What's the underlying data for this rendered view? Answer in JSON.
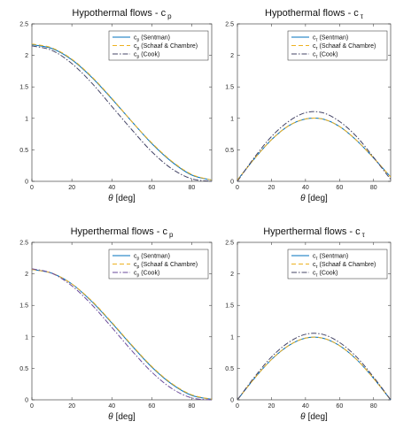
{
  "chart_data": [
    {
      "type": "line",
      "title": "Hypothermal flows - c",
      "title_sub": "p",
      "xlabel": "[deg]",
      "xlabel_symbol": "θ",
      "xlim": [
        0,
        90
      ],
      "ylim": [
        0,
        2.5
      ],
      "xticks": [
        "0",
        "20",
        "40",
        "60",
        "80"
      ],
      "yticks": [
        "0",
        "0.5",
        "1",
        "1.5",
        "2",
        "2.5"
      ],
      "legend_position": "top-right",
      "grid": false,
      "x": [
        0,
        10,
        20,
        30,
        40,
        50,
        60,
        70,
        80,
        90
      ],
      "series": [
        {
          "name": "c",
          "sub": "p",
          "name_suffix": "(Sentman)",
          "color": "#0072bd",
          "dash": "solid",
          "values": [
            2.17,
            2.11,
            1.93,
            1.65,
            1.31,
            0.95,
            0.6,
            0.31,
            0.1,
            0.02
          ]
        },
        {
          "name": "c",
          "sub": "p",
          "name_suffix": "(Schaaf & Chambre)",
          "color": "#edb120",
          "dash": "dashed",
          "values": [
            2.18,
            2.12,
            1.94,
            1.66,
            1.32,
            0.95,
            0.61,
            0.32,
            0.11,
            0.02
          ]
        },
        {
          "name": "c",
          "sub": "p",
          "name_suffix": "(Cook)",
          "color": "#444466",
          "dash": "dashdot",
          "values": [
            2.15,
            2.08,
            1.87,
            1.56,
            1.19,
            0.82,
            0.47,
            0.2,
            0.04,
            0.0
          ]
        }
      ]
    },
    {
      "type": "line",
      "title": "Hypothermal flows - c",
      "title_sub": "τ",
      "xlabel": "[deg]",
      "xlabel_symbol": "θ",
      "xlim": [
        0,
        90
      ],
      "ylim": [
        0,
        2.5
      ],
      "xticks": [
        "0",
        "20",
        "40",
        "60",
        "80"
      ],
      "yticks": [
        "0",
        "0.5",
        "1",
        "1.5",
        "2",
        "2.5"
      ],
      "legend_position": "top-right",
      "grid": false,
      "x": [
        0,
        10,
        20,
        30,
        40,
        50,
        60,
        70,
        80,
        90
      ],
      "series": [
        {
          "name": "c",
          "sub": "τ",
          "name_suffix": "(Sentman)",
          "color": "#0072bd",
          "dash": "solid",
          "values": [
            0.02,
            0.36,
            0.66,
            0.88,
            0.99,
            0.99,
            0.87,
            0.65,
            0.37,
            0.07
          ]
        },
        {
          "name": "c",
          "sub": "τ",
          "name_suffix": "(Schaaf & Chambre)",
          "color": "#edb120",
          "dash": "dashed",
          "values": [
            0.02,
            0.36,
            0.66,
            0.88,
            0.99,
            0.99,
            0.87,
            0.65,
            0.37,
            0.07
          ]
        },
        {
          "name": "c",
          "sub": "τ",
          "name_suffix": "(Cook)",
          "color": "#444466",
          "dash": "dashdot",
          "values": [
            0.0,
            0.38,
            0.71,
            0.95,
            1.09,
            1.09,
            0.95,
            0.71,
            0.38,
            0.03
          ]
        }
      ]
    },
    {
      "type": "line",
      "title": "Hyperthermal flows - c",
      "title_sub": "p",
      "xlabel": "[deg]",
      "xlabel_symbol": "θ",
      "xlim": [
        0,
        90
      ],
      "ylim": [
        0,
        2.5
      ],
      "xticks": [
        "0",
        "20",
        "40",
        "60",
        "80"
      ],
      "yticks": [
        "0",
        "0.5",
        "1",
        "1.5",
        "2",
        "2.5"
      ],
      "legend_position": "top-right",
      "grid": false,
      "x": [
        0,
        10,
        20,
        30,
        40,
        50,
        60,
        70,
        80,
        90
      ],
      "series": [
        {
          "name": "c",
          "sub": "p",
          "name_suffix": "(Sentman)",
          "color": "#0072bd",
          "dash": "solid",
          "values": [
            2.07,
            2.01,
            1.84,
            1.56,
            1.22,
            0.86,
            0.52,
            0.25,
            0.07,
            0.01
          ]
        },
        {
          "name": "c",
          "sub": "p",
          "name_suffix": "(Schaaf & Chambre)",
          "color": "#edb120",
          "dash": "dashed",
          "values": [
            2.07,
            2.01,
            1.84,
            1.57,
            1.23,
            0.87,
            0.53,
            0.26,
            0.08,
            0.01
          ]
        },
        {
          "name": "c",
          "sub": "p",
          "name_suffix": "(Cook)",
          "color": "#6a4a9a",
          "dash": "dashdot",
          "values": [
            2.08,
            2.01,
            1.81,
            1.51,
            1.15,
            0.78,
            0.44,
            0.18,
            0.03,
            0.0
          ]
        }
      ]
    },
    {
      "type": "line",
      "title": "Hyperthermal flows - c",
      "title_sub": "τ",
      "xlabel": "[deg]",
      "xlabel_symbol": "θ",
      "xlim": [
        0,
        90
      ],
      "ylim": [
        0,
        2.5
      ],
      "xticks": [
        "0",
        "20",
        "40",
        "60",
        "80"
      ],
      "yticks": [
        "0",
        "0.5",
        "1",
        "1.5",
        "2",
        "2.5"
      ],
      "legend_position": "top-right",
      "grid": false,
      "x": [
        0,
        10,
        20,
        30,
        40,
        50,
        60,
        70,
        80,
        90
      ],
      "series": [
        {
          "name": "c",
          "sub": "τ",
          "name_suffix": "(Sentman)",
          "color": "#0072bd",
          "dash": "solid",
          "values": [
            0.0,
            0.34,
            0.64,
            0.86,
            0.98,
            0.98,
            0.86,
            0.64,
            0.34,
            0.0
          ]
        },
        {
          "name": "c",
          "sub": "τ",
          "name_suffix": "(Schaaf & Chambre)",
          "color": "#edb120",
          "dash": "dashed",
          "values": [
            0.0,
            0.34,
            0.64,
            0.86,
            0.98,
            0.98,
            0.86,
            0.64,
            0.34,
            0.0
          ]
        },
        {
          "name": "c",
          "sub": "τ",
          "name_suffix": "(Cook)",
          "color": "#444466",
          "dash": "dashdot",
          "values": [
            0.0,
            0.36,
            0.68,
            0.91,
            1.04,
            1.04,
            0.91,
            0.68,
            0.36,
            0.0
          ]
        }
      ]
    }
  ]
}
